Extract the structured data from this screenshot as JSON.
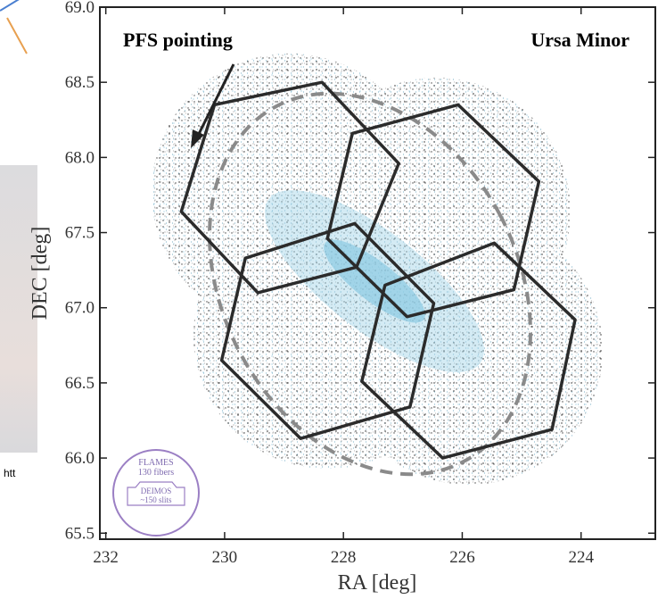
{
  "side_panel": {
    "text": "htt"
  },
  "chart_data": {
    "type": "polygon",
    "xlabel": "RA [deg]",
    "ylabel": "DEC [deg]",
    "xlim": [
      232.1,
      222.75
    ],
    "ylim": [
      65.46,
      69.0
    ],
    "xticks": [
      232,
      230,
      228,
      226,
      224
    ],
    "yticks": [
      {
        "value": 69.0,
        "label": "69.0"
      },
      68.5,
      {
        "value": 68.0,
        "label": "68.0"
      },
      67.5,
      {
        "value": 67.0,
        "label": "67.0"
      },
      66.5,
      {
        "value": 66.0,
        "label": "66.0"
      },
      65.5
    ],
    "color": "#2b2b2b",
    "annotations": {
      "pointing": "PFS pointing",
      "target": "Ursa Minor",
      "flames": "FLAMES",
      "fibers": "130 fibers",
      "deimos": "DEIMOS",
      "slits": "~150 slits"
    },
    "series": [
      {
        "x": [
          230.17,
          228.36,
          227.07,
          227.78,
          229.44,
          230.73
        ],
        "y": [
          68.35,
          68.5,
          67.96,
          67.27,
          67.1,
          67.64
        ]
      },
      {
        "x": [
          227.85,
          226.07,
          224.71,
          225.13,
          226.93,
          228.27
        ],
        "y": [
          68.16,
          68.35,
          67.84,
          67.12,
          66.94,
          67.46
        ]
      },
      {
        "x": [
          229.65,
          227.81,
          226.48,
          226.88,
          228.72,
          230.05
        ],
        "y": [
          67.33,
          67.56,
          67.03,
          66.34,
          66.13,
          66.65
        ]
      },
      {
        "x": [
          227.3,
          225.46,
          224.1,
          224.49,
          226.33,
          227.69
        ],
        "y": [
          67.15,
          67.43,
          66.92,
          66.19,
          66.0,
          66.51
        ]
      }
    ]
  }
}
